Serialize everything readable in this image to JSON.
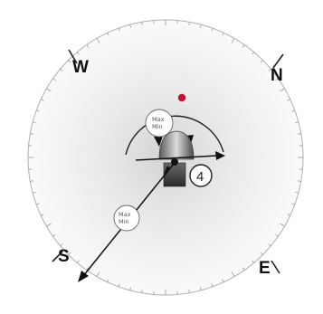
{
  "compass": {
    "north": "N",
    "east": "E",
    "south": "S",
    "west": "W"
  },
  "upper_bubble": {
    "line1": "Max",
    "line2": "Min"
  },
  "lower_bubble": {
    "line1": "Max",
    "line2": "Min"
  },
  "callout_number": "4",
  "colors": {
    "dot": "#c8102e",
    "ring": "#a9a9a9",
    "dial_center": "#ffffff",
    "dial_edge": "#c9c9c9"
  }
}
